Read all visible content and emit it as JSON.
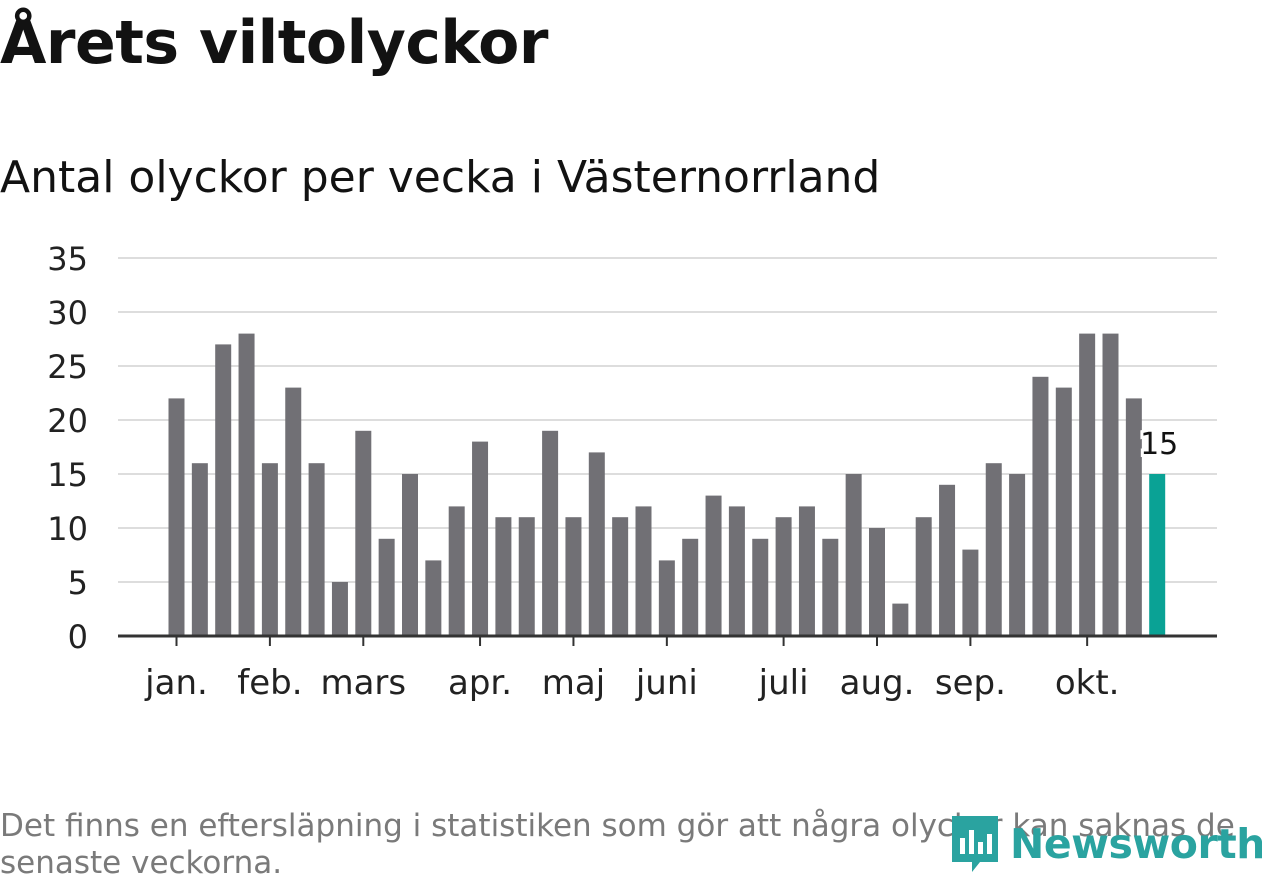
{
  "header": {
    "title": "Årets viltolyckor",
    "subtitle": "Antal olyckor per vecka i Västernorrland"
  },
  "footer": {
    "note": "Det finns en eftersläpning i statistiken som gör att några olyckor kan saknas de senaste veckorna.",
    "logo_text": "Newsworthy"
  },
  "colors": {
    "bar": "#717075",
    "highlight": "#0aa295",
    "grid": "#dddddd",
    "axis": "#333333",
    "brand": "#2aa3a0"
  },
  "chart_data": {
    "type": "bar",
    "title": "Årets viltolyckor",
    "subtitle": "Antal olyckor per vecka i Västernorrland",
    "xlabel": "",
    "ylabel": "",
    "ylim": [
      0,
      35
    ],
    "yticks": [
      0,
      5,
      10,
      15,
      20,
      25,
      30,
      35
    ],
    "grid": true,
    "values": [
      22,
      16,
      27,
      28,
      16,
      23,
      16,
      5,
      19,
      9,
      15,
      7,
      12,
      18,
      11,
      11,
      19,
      11,
      17,
      11,
      12,
      7,
      9,
      13,
      12,
      9,
      11,
      12,
      9,
      15,
      10,
      3,
      11,
      14,
      8,
      16,
      15,
      24,
      23,
      28,
      28,
      22,
      15
    ],
    "month_ticks": [
      {
        "label": "jan.",
        "week": 1
      },
      {
        "label": "feb.",
        "week": 5
      },
      {
        "label": "mars",
        "week": 9
      },
      {
        "label": "apr.",
        "week": 14
      },
      {
        "label": "maj",
        "week": 18
      },
      {
        "label": "juni",
        "week": 22
      },
      {
        "label": "juli",
        "week": 27
      },
      {
        "label": "aug.",
        "week": 31
      },
      {
        "label": "sep.",
        "week": 35
      },
      {
        "label": "okt.",
        "week": 40
      }
    ],
    "highlight_index": 42,
    "annotations": [
      {
        "index": 42,
        "text": "15"
      }
    ]
  }
}
